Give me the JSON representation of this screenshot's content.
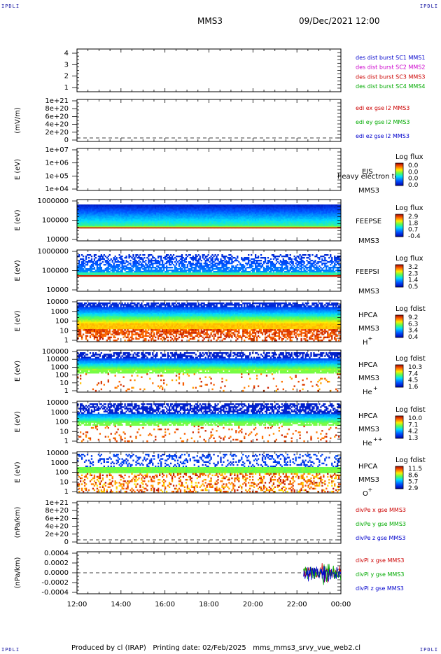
{
  "corner_label": "IPDLI",
  "title": "MMS3",
  "date": "09/Dec/2021 12:00",
  "footer": "Produced by cl (IRAP)   Printing date: 02/Feb/2025   mms_mms3_srvy_vue_web2.cl",
  "x_ticks": [
    "12:00",
    "14:00",
    "16:00",
    "18:00",
    "20:00",
    "22:00",
    "00:00"
  ],
  "chart_data": [
    {
      "type": "line",
      "panel": "burst",
      "ylim": [
        0.5,
        4.5
      ],
      "yticks": [
        "1",
        "2",
        "3",
        "4"
      ],
      "legend": [
        {
          "label": "des dist burst SC1 MMS1",
          "color": "#0000cc"
        },
        {
          "label": "des dist burst SC2 MMS2",
          "color": "#cc00cc"
        },
        {
          "label": "des dist burst SC3 MMS3",
          "color": "#cc0000"
        },
        {
          "label": "des dist burst SC4 MMS4",
          "color": "#00aa00"
        }
      ]
    },
    {
      "type": "line",
      "panel": "edi",
      "ylabel": "(mV/m)",
      "yticks": [
        "1e+21",
        "8e+20",
        "6e+20",
        "4e+20",
        "2e+20",
        "0"
      ],
      "legend": [
        {
          "label": "edi ex gse l2 MMS3",
          "color": "#cc0000"
        },
        {
          "label": "edi ey gse l2 MMS3",
          "color": "#00aa00"
        },
        {
          "label": "edi ez gse l2 MMS3",
          "color": "#0000cc"
        }
      ]
    },
    {
      "type": "heatmap",
      "panel": "eis",
      "ylabel": "E (eV)",
      "yticks": [
        "1e+07",
        "1e+06",
        "1e+05",
        "1e+04"
      ],
      "label_lines": [
        "EIS",
        "MMS3"
      ],
      "overlay_text": "heavy electron to",
      "colorbar_title": "Log flux",
      "colorbar_ticks": [
        "0.0",
        "0.0",
        "0.0",
        "0.0"
      ]
    },
    {
      "type": "heatmap",
      "panel": "feepse",
      "ylabel": "E (eV)",
      "yticks": [
        "1000000",
        "100000",
        "10000"
      ],
      "label_lines": [
        "FEEPSE",
        "MMS3"
      ],
      "colorbar_title": "Log flux",
      "colorbar_ticks": [
        "2.9",
        "1.8",
        "0.7",
        "-0.4"
      ]
    },
    {
      "type": "heatmap",
      "panel": "feepsi",
      "ylabel": "E (eV)",
      "yticks": [
        "1000000",
        "100000",
        "10000"
      ],
      "label_lines": [
        "FEEPSI",
        "MMS3"
      ],
      "colorbar_title": "Log flux",
      "colorbar_ticks": [
        "3.2",
        "2.3",
        "1.4",
        "0.5"
      ]
    },
    {
      "type": "heatmap",
      "panel": "hpca_h",
      "ylabel": "E (eV)",
      "yticks": [
        "10000",
        "1000",
        "100",
        "10",
        "1"
      ],
      "label_lines": [
        "HPCA",
        "MMS3"
      ],
      "species": "H",
      "charge": "+",
      "colorbar_title": "Log fdist",
      "colorbar_ticks": [
        "9.2",
        "6.3",
        "3.4",
        "0.4"
      ]
    },
    {
      "type": "heatmap",
      "panel": "hpca_he",
      "ylabel": "E (eV)",
      "yticks": [
        "100000",
        "10000",
        "1000",
        "100",
        "10",
        "1"
      ],
      "label_lines": [
        "HPCA",
        "MMS3"
      ],
      "species": "He",
      "charge": "+",
      "colorbar_title": "Log fdist",
      "colorbar_ticks": [
        "10.3",
        "7.4",
        "4.5",
        "1.6"
      ]
    },
    {
      "type": "heatmap",
      "panel": "hpca_hepp",
      "ylabel": "E (eV)",
      "yticks": [
        "10000",
        "1000",
        "100",
        "10",
        "1"
      ],
      "label_lines": [
        "HPCA",
        "MMS3"
      ],
      "species": "He",
      "charge": "++",
      "colorbar_title": "Log fdist",
      "colorbar_ticks": [
        "10.0",
        "7.1",
        "4.2",
        "1.3"
      ]
    },
    {
      "type": "heatmap",
      "panel": "hpca_o",
      "ylabel": "E (eV)",
      "yticks": [
        "10000",
        "1000",
        "100",
        "10",
        "1"
      ],
      "label_lines": [
        "HPCA",
        "MMS3"
      ],
      "species": "O",
      "charge": "+",
      "colorbar_title": "Log fdist",
      "colorbar_ticks": [
        "11.5",
        "8.6",
        "5.7",
        "2.9"
      ]
    },
    {
      "type": "line",
      "panel": "divpe",
      "ylabel": "(nPa/km)",
      "yticks": [
        "1e+21",
        "8e+20",
        "6e+20",
        "4e+20",
        "2e+20",
        "0"
      ],
      "legend": [
        {
          "label": "divPe x gse MMS3",
          "color": "#cc0000"
        },
        {
          "label": "divPe y gse MMS3",
          "color": "#00aa00"
        },
        {
          "label": "divPe z gse MMS3",
          "color": "#0000cc"
        }
      ]
    },
    {
      "type": "line",
      "panel": "divpi",
      "ylabel": "(nPa/km)",
      "yticks": [
        "0.0004",
        "0.0002",
        "0.0000",
        "-0.0002",
        "-0.0004"
      ],
      "ylim": [
        -0.0005,
        0.0005
      ],
      "data_start_hour": 22.3,
      "legend": [
        {
          "label": "divPi x gse MMS3",
          "color": "#cc0000"
        },
        {
          "label": "divPi y gse MMS3",
          "color": "#00aa00"
        },
        {
          "label": "divPi z gse MMS3",
          "color": "#0000cc"
        }
      ]
    }
  ]
}
